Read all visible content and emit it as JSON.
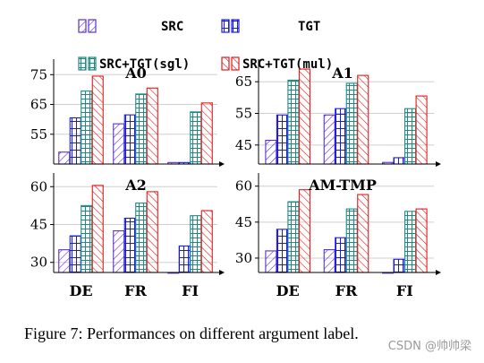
{
  "chart_data": [
    {
      "type": "bar",
      "title": "A0",
      "categories": [
        "DE",
        "FR",
        "FI"
      ],
      "ylim": [
        45,
        79
      ],
      "yticks": [
        55,
        65,
        75
      ],
      "series": [
        {
          "name": "SRC",
          "values": [
            49,
            58.5,
            45.5
          ]
        },
        {
          "name": "TGT",
          "values": [
            60.5,
            61.5,
            45.5
          ]
        },
        {
          "name": "SRC+TGT(sgl)",
          "values": [
            69.5,
            68.5,
            62.5
          ]
        },
        {
          "name": "SRC+TGT(mul)",
          "values": [
            74.5,
            70.5,
            65.5
          ]
        }
      ]
    },
    {
      "type": "bar",
      "title": "A1",
      "categories": [
        "DE",
        "FR",
        "FI"
      ],
      "ylim": [
        39,
        71
      ],
      "yticks": [
        45,
        55,
        65
      ],
      "series": [
        {
          "name": "SRC",
          "values": [
            46.5,
            54.5,
            39.5
          ]
        },
        {
          "name": "TGT",
          "values": [
            54.5,
            56.5,
            41
          ]
        },
        {
          "name": "SRC+TGT(sgl)",
          "values": [
            65.5,
            64.5,
            56.5
          ]
        },
        {
          "name": "SRC+TGT(mul)",
          "values": [
            69,
            67,
            60.5
          ]
        }
      ]
    },
    {
      "type": "bar",
      "title": "A2",
      "categories": [
        "DE",
        "FR",
        "FI"
      ],
      "ylim": [
        26,
        64
      ],
      "yticks": [
        30,
        45,
        60
      ],
      "series": [
        {
          "name": "SRC",
          "values": [
            35,
            42.5,
            26
          ]
        },
        {
          "name": "TGT",
          "values": [
            40.5,
            47.5,
            36.5
          ]
        },
        {
          "name": "SRC+TGT(sgl)",
          "values": [
            52.5,
            53.5,
            48.5
          ]
        },
        {
          "name": "SRC+TGT(mul)",
          "values": [
            60.5,
            58,
            50.5
          ]
        }
      ]
    },
    {
      "type": "bar",
      "title": "AM-TMP",
      "categories": [
        "DE",
        "FR",
        "FI"
      ],
      "ylim": [
        24,
        64
      ],
      "yticks": [
        30,
        45,
        60
      ],
      "series": [
        {
          "name": "SRC",
          "values": [
            33,
            33.5,
            24
          ]
        },
        {
          "name": "TGT",
          "values": [
            42,
            38.5,
            29.5
          ]
        },
        {
          "name": "SRC+TGT(sgl)",
          "values": [
            53.5,
            50.5,
            49.5
          ]
        },
        {
          "name": "SRC+TGT(mul)",
          "values": [
            58.5,
            56.5,
            50.5
          ]
        }
      ]
    }
  ],
  "legend": [
    {
      "label": "SRC",
      "color": "#5b2fd0",
      "pattern": "hatch-ne"
    },
    {
      "label": "TGT",
      "color": "#1a1ae6",
      "pattern": "grid-vertical"
    },
    {
      "label": "SRC+TGT(sgl)",
      "color": "#1f8a84",
      "pattern": "grid"
    },
    {
      "label": "SRC+TGT(mul)",
      "color": "#e01b1b",
      "pattern": "hatch-nw"
    }
  ],
  "x_categories": [
    "DE",
    "FR",
    "FI"
  ],
  "caption": "Figure 7: Performances on different argument label.",
  "watermark": "CSDN @帅帅梁"
}
